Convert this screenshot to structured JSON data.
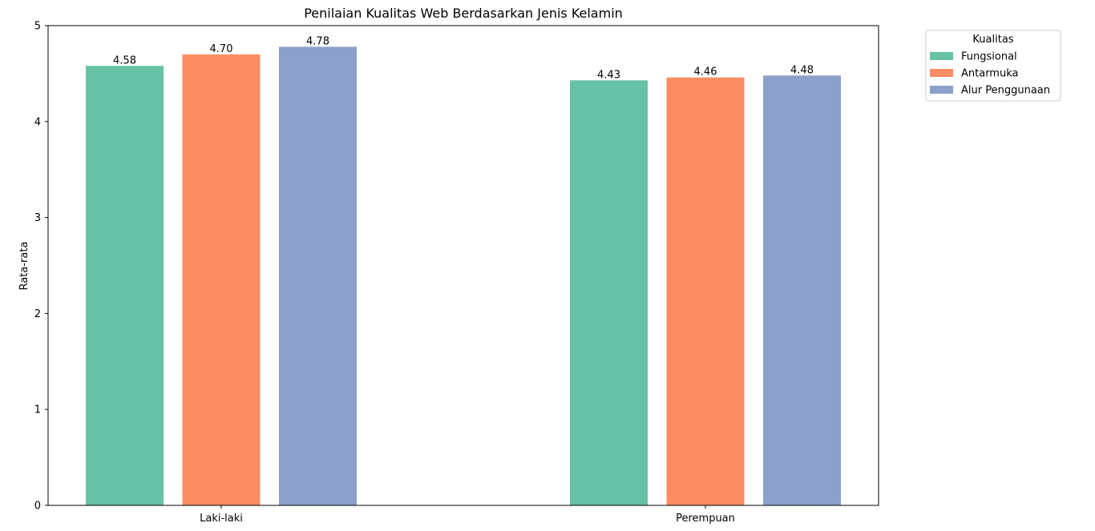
{
  "chart_data": {
    "type": "bar",
    "title": "Penilaian Kualitas Web Berdasarkan Jenis Kelamin",
    "xlabel": "",
    "ylabel": "Rata-rata",
    "categories": [
      "Laki-laki",
      "Perempuan"
    ],
    "series": [
      {
        "name": "Fungsional",
        "values": [
          4.58,
          4.43
        ],
        "labels": [
          "4.58",
          "4.43"
        ],
        "color": "#66c2a5"
      },
      {
        "name": "Antarmuka",
        "values": [
          4.7,
          4.46
        ],
        "labels": [
          "4.70",
          "4.46"
        ],
        "color": "#fc8d62"
      },
      {
        "name": "Alur Penggunaan",
        "values": [
          4.78,
          4.48
        ],
        "labels": [
          "4.78",
          "4.48"
        ],
        "color": "#8da0cb"
      }
    ],
    "ylim": [
      0,
      5
    ],
    "yticks": [
      "0",
      "1",
      "2",
      "3",
      "4",
      "5"
    ],
    "grid": false,
    "legend": {
      "title": "Kualitas",
      "placement": "outside-top-right"
    }
  }
}
